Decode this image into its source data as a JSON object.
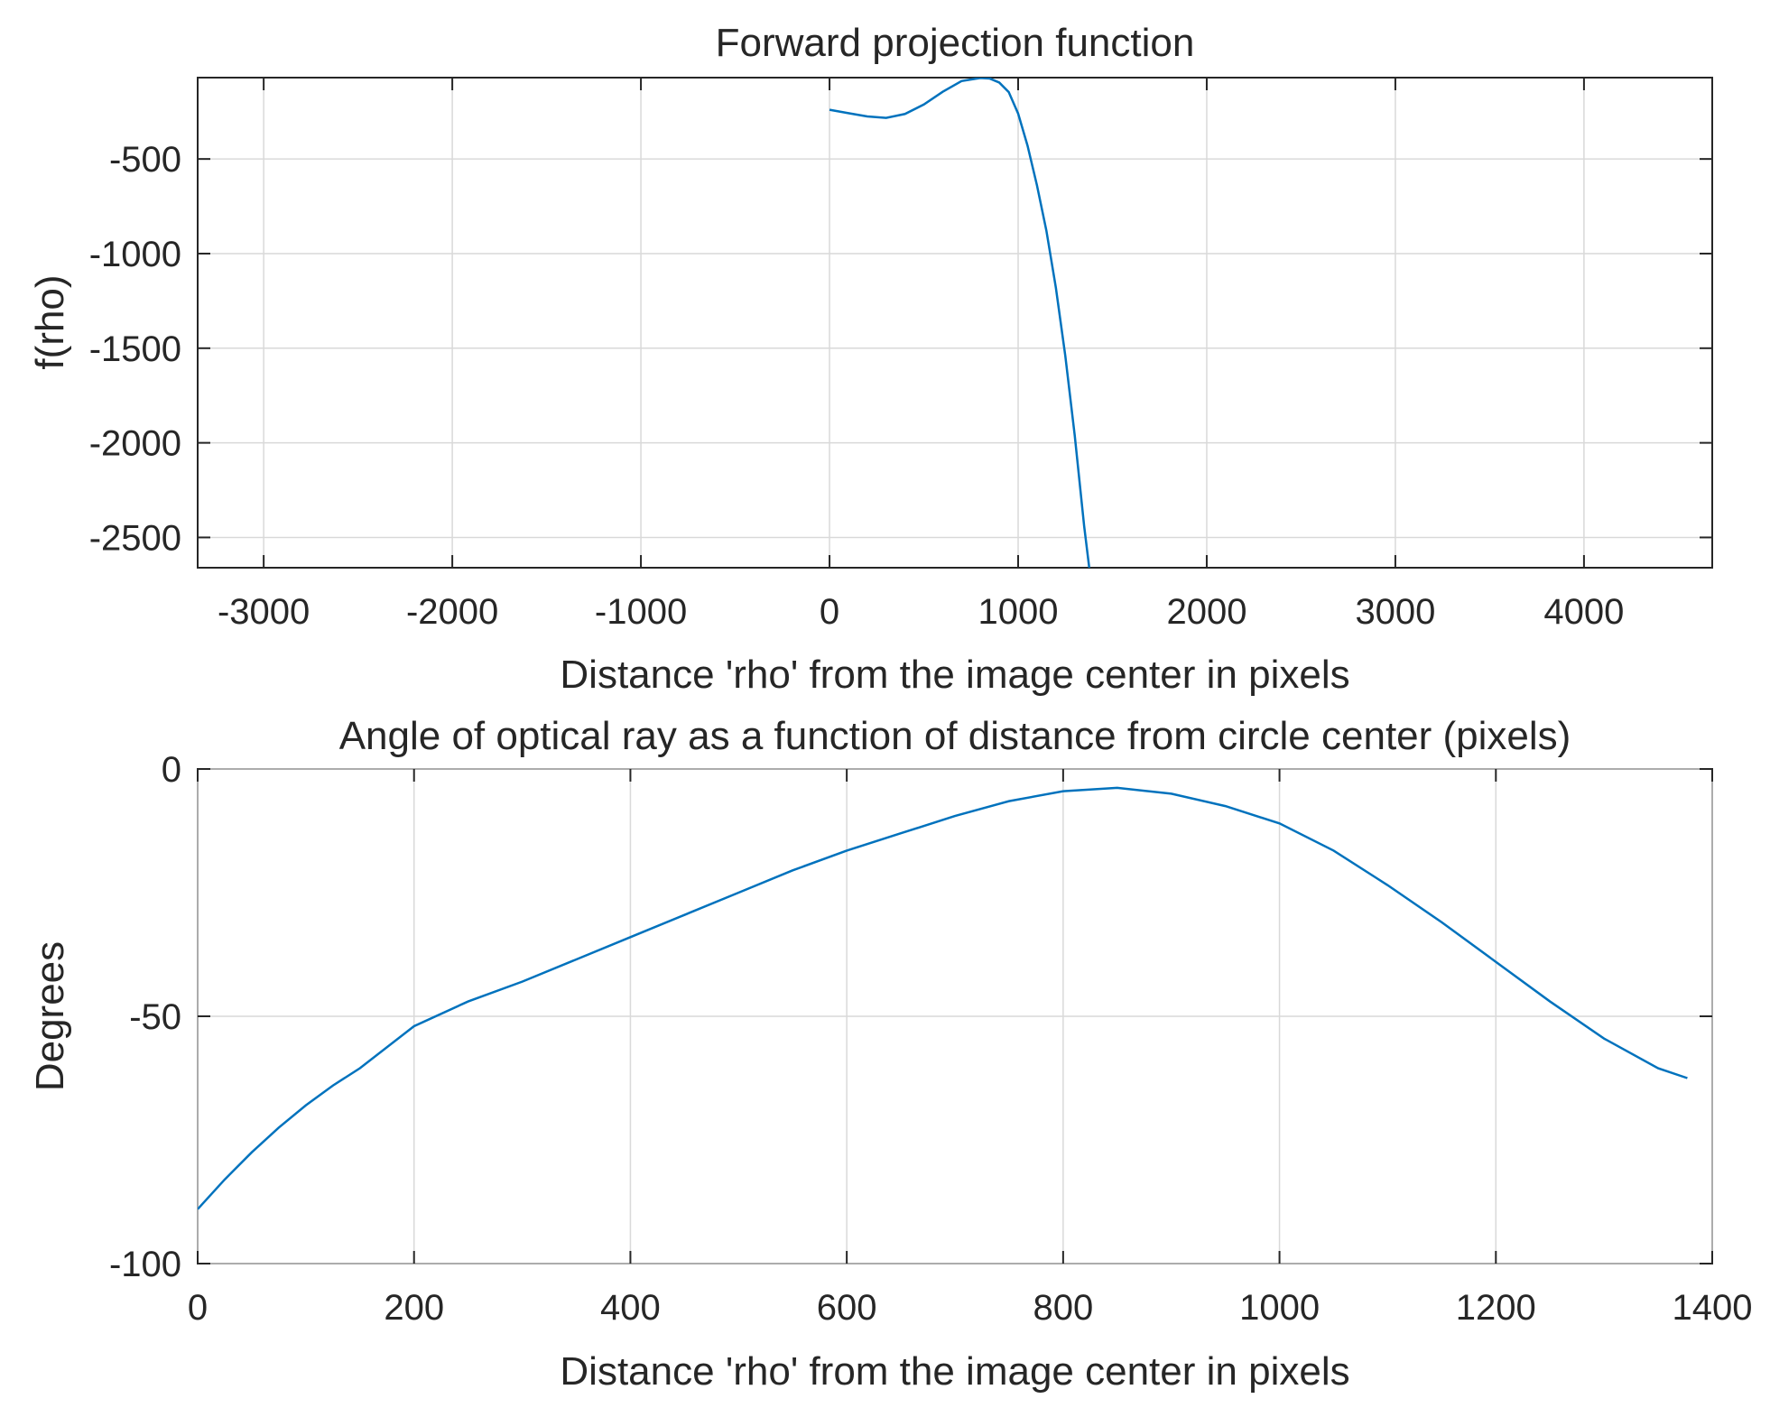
{
  "chart_data": [
    {
      "type": "line",
      "title": "Forward projection function",
      "xlabel": "Distance 'rho' from the image center in pixels",
      "ylabel": "f(rho)",
      "xlim": [
        -3350,
        4680
      ],
      "ylim": [
        -2660,
        -70
      ],
      "xticks": [
        -3000,
        -2000,
        -1000,
        0,
        1000,
        2000,
        3000,
        4000
      ],
      "yticks": [
        -2500,
        -2000,
        -1500,
        -1000,
        -500
      ],
      "grid": true,
      "color": "#0072BD",
      "series": [
        {
          "x": [
            0,
            100,
            200,
            300,
            400,
            500,
            600,
            700,
            800,
            850,
            900,
            950,
            1000,
            1050,
            1100,
            1150,
            1200,
            1250,
            1300,
            1350,
            1377
          ],
          "y": [
            -240,
            -258,
            -275,
            -283,
            -262,
            -212,
            -145,
            -88,
            -72,
            -75,
            -96,
            -146,
            -260,
            -430,
            -640,
            -880,
            -1180,
            -1540,
            -1960,
            -2440,
            -2660
          ]
        }
      ]
    },
    {
      "type": "line",
      "title": "Angle of optical ray as a function of distance from circle center (pixels)",
      "xlabel": "Distance 'rho' from the image center in pixels",
      "ylabel": "Degrees",
      "xlim": [
        0,
        1400
      ],
      "ylim": [
        -100,
        0
      ],
      "xticks": [
        0,
        200,
        400,
        600,
        800,
        1000,
        1200,
        1400
      ],
      "yticks": [
        -100,
        -50,
        0
      ],
      "grid": true,
      "color": "#0072BD",
      "series": [
        {
          "x": [
            0,
            25,
            50,
            75,
            100,
            125,
            150,
            200,
            250,
            300,
            350,
            400,
            450,
            500,
            550,
            600,
            650,
            700,
            750,
            800,
            850,
            900,
            950,
            1000,
            1050,
            1100,
            1150,
            1200,
            1250,
            1300,
            1350,
            1377
          ],
          "y": [
            -89,
            -83,
            -77.5,
            -72.5,
            -68,
            -64,
            -60.5,
            -52,
            -47,
            -43,
            -38.5,
            -34,
            -29.5,
            -25,
            -20.5,
            -16.5,
            -13,
            -9.5,
            -6.5,
            -4.5,
            -3.8,
            -5,
            -7.5,
            -11,
            -16.5,
            -23.5,
            -31,
            -39,
            -47,
            -54.5,
            -60.5,
            -62.5
          ]
        }
      ]
    }
  ]
}
